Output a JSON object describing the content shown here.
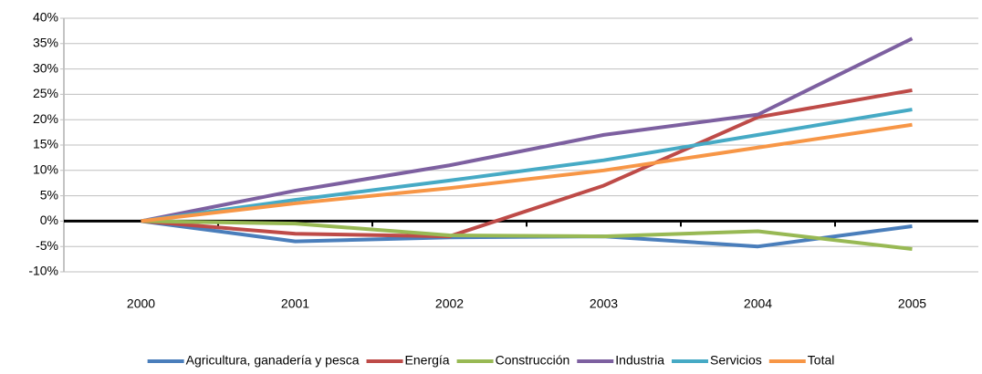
{
  "chart_data": {
    "type": "line",
    "categories": [
      "2000",
      "2001",
      "2002",
      "2003",
      "2004",
      "2005"
    ],
    "series": [
      {
        "name": "Agricultura, ganadería y pesca",
        "color": "#4a7ebb",
        "values": [
          0,
          -4,
          -3.2,
          -3,
          -5,
          -1
        ]
      },
      {
        "name": "Energía",
        "color": "#be4b48",
        "values": [
          0,
          -2.5,
          -3,
          7,
          20.5,
          25.8
        ]
      },
      {
        "name": "Construcción",
        "color": "#98b954",
        "values": [
          0,
          -0.5,
          -2.8,
          -3,
          -2,
          -5.5
        ]
      },
      {
        "name": "Industria",
        "color": "#7d60a0",
        "values": [
          0,
          6,
          11,
          17,
          21,
          36
        ]
      },
      {
        "name": "Servicios",
        "color": "#46aac5",
        "values": [
          0,
          4.2,
          8,
          12,
          17,
          22
        ]
      },
      {
        "name": "Total",
        "color": "#f79646",
        "values": [
          0,
          3.5,
          6.5,
          10,
          14.5,
          19
        ]
      }
    ],
    "ylim": [
      -10,
      40
    ],
    "yticks": [
      {
        "value": -10,
        "label": "-10%"
      },
      {
        "value": -5,
        "label": "-5%"
      },
      {
        "value": 0,
        "label": "0%"
      },
      {
        "value": 5,
        "label": "5%"
      },
      {
        "value": 10,
        "label": "10%"
      },
      {
        "value": 15,
        "label": "15%"
      },
      {
        "value": 20,
        "label": "20%"
      },
      {
        "value": 25,
        "label": "25%"
      },
      {
        "value": 30,
        "label": "30%"
      },
      {
        "value": 35,
        "label": "35%"
      },
      {
        "value": 40,
        "label": "40%"
      }
    ],
    "grid": true,
    "legend": "bottom"
  }
}
